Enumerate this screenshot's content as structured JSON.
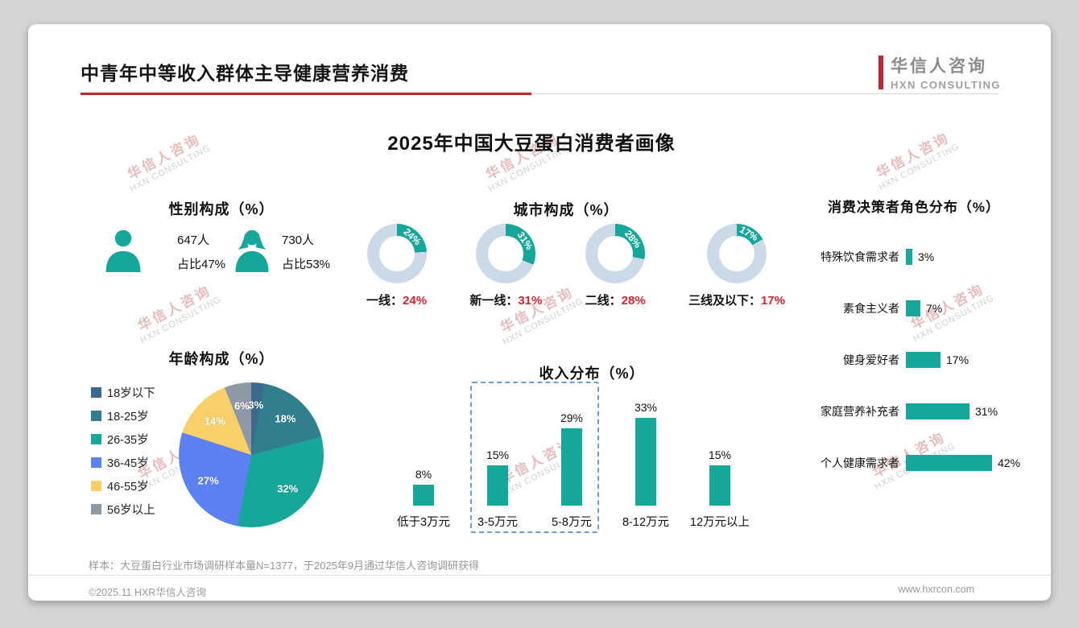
{
  "header": {
    "title": "中青年中等收入群体主导健康营养消费",
    "logo_cn": "华信人咨询",
    "logo_en": "HXN CONSULTING"
  },
  "main_title": "2025年中国大豆蛋白消费者画像",
  "watermark": {
    "line1": "华信人咨询",
    "line2": "HXN CONSULTING"
  },
  "colors": {
    "teal": "#17a79a",
    "red": "#d9232e",
    "donut_track": "#ccd9e8",
    "highlight_border": "#6f9bd8"
  },
  "chart_data": [
    {
      "id": "gender",
      "type": "pictogram",
      "title": "性别构成（%）",
      "items": [
        {
          "icon": "male-icon",
          "count": "647人",
          "share": "占比47%"
        },
        {
          "icon": "female-icon",
          "count": "730人",
          "share": "占比53%"
        }
      ]
    },
    {
      "id": "age",
      "type": "pie",
      "title": "年龄构成（%）",
      "categories": [
        "18岁以下",
        "18-25岁",
        "26-35岁",
        "36-45岁",
        "46-55岁",
        "56岁以上"
      ],
      "values": [
        3,
        18,
        32,
        27,
        14,
        6
      ],
      "colors": [
        "#3a6b8c",
        "#2f7f8f",
        "#17a79a",
        "#5b82f0",
        "#f8cf68",
        "#8f99a5"
      ],
      "legend_position": "left"
    },
    {
      "id": "city",
      "type": "donut",
      "title": "城市构成（%）",
      "label_separator": "：",
      "items": [
        {
          "label": "一线",
          "value": 24
        },
        {
          "label": "新一线",
          "value": 31
        },
        {
          "label": "二线",
          "value": 28
        },
        {
          "label": "三线及以下",
          "value": 17
        }
      ]
    },
    {
      "id": "income",
      "type": "bar",
      "title": "收入分布（%）",
      "categories": [
        "低于3万元",
        "3-5万元",
        "5-8万元",
        "8-12万元",
        "12万元以上"
      ],
      "values": [
        8,
        15,
        29,
        33,
        15
      ],
      "highlight_indices": [
        1,
        2
      ],
      "ylim": [
        0,
        35
      ]
    },
    {
      "id": "roles",
      "type": "hbar",
      "title": "消费决策者角色分布（%）",
      "categories": [
        "特殊饮食需求者",
        "素食主义者",
        "健身爱好者",
        "家庭营养补充者",
        "个人健康需求者"
      ],
      "values": [
        3,
        7,
        17,
        31,
        42
      ],
      "xlim": [
        0,
        45
      ]
    }
  ],
  "footer": {
    "sample_note": "样本：大豆蛋白行业市场调研样本量N=1377，于2025年9月通过华信人咨询调研获得",
    "copyright": "©2025.11 HXR华信人咨询",
    "website": "www.hxrcon.com"
  }
}
